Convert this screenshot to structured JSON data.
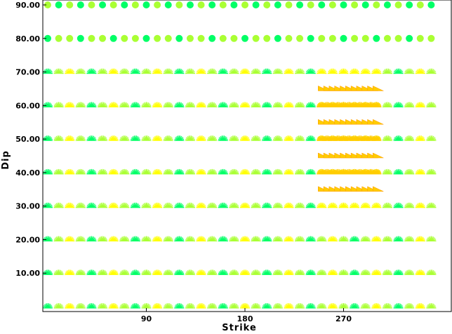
{
  "chart_data": {
    "type": "scatter",
    "xlabel": "Strike",
    "ylabel": "Dip",
    "xlim": [
      0,
      360
    ],
    "ylim": [
      0,
      90
    ],
    "x_ticks": [
      {
        "value": 90,
        "label": "90"
      },
      {
        "value": 180,
        "label": "180"
      },
      {
        "value": 270,
        "label": "270"
      }
    ],
    "y_ticks": [
      {
        "value": 10,
        "label": "10.00"
      },
      {
        "value": 20,
        "label": "20.00"
      },
      {
        "value": 30,
        "label": "30.00"
      },
      {
        "value": 40,
        "label": "40.00"
      },
      {
        "value": 50,
        "label": "50.00"
      },
      {
        "value": 60,
        "label": "60.00"
      },
      {
        "value": 70,
        "label": "70.00"
      },
      {
        "value": 80,
        "label": "80.00"
      },
      {
        "value": 90,
        "label": "90.00"
      }
    ],
    "grid_dips": [
      0,
      10,
      20,
      30,
      40,
      50,
      60,
      70,
      80,
      90
    ],
    "grid_strike_step": 10,
    "fine_strikes": [
      250,
      300
    ],
    "fine_dips": [
      35,
      40,
      45,
      50,
      55,
      60,
      65
    ],
    "fine_strike_step": 5,
    "colors": {
      "low_fit": "#00ff66",
      "mid_fit": "#aaff33",
      "high_fit": "#ffff00",
      "best_fit": "#ffcc00",
      "frame": "#000000"
    }
  }
}
